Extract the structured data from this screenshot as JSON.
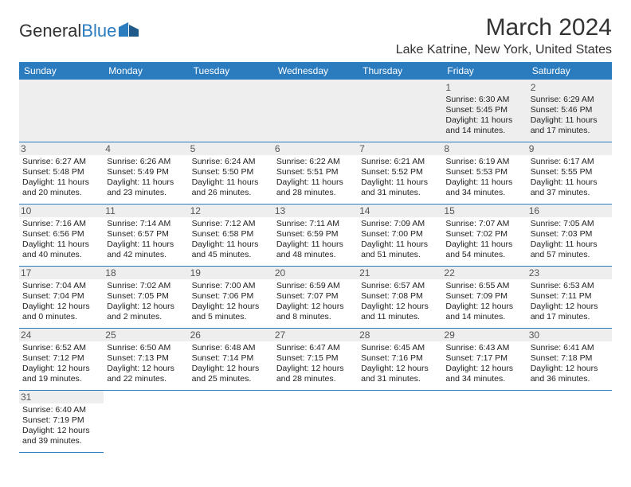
{
  "logo": {
    "text1": "General",
    "text2": "Blue"
  },
  "title": "March 2024",
  "location": "Lake Katrine, New York, United States",
  "colors": {
    "header_bg": "#2b7bbf",
    "header_text": "#ffffff",
    "border": "#2b7bbf",
    "daynum_bg": "#eeeeee",
    "text": "#222222"
  },
  "dayNames": [
    "Sunday",
    "Monday",
    "Tuesday",
    "Wednesday",
    "Thursday",
    "Friday",
    "Saturday"
  ],
  "weeks": [
    [
      null,
      null,
      null,
      null,
      null,
      {
        "n": "1",
        "sr": "Sunrise: 6:30 AM",
        "ss": "Sunset: 5:45 PM",
        "d1": "Daylight: 11 hours",
        "d2": "and 14 minutes."
      },
      {
        "n": "2",
        "sr": "Sunrise: 6:29 AM",
        "ss": "Sunset: 5:46 PM",
        "d1": "Daylight: 11 hours",
        "d2": "and 17 minutes."
      }
    ],
    [
      {
        "n": "3",
        "sr": "Sunrise: 6:27 AM",
        "ss": "Sunset: 5:48 PM",
        "d1": "Daylight: 11 hours",
        "d2": "and 20 minutes."
      },
      {
        "n": "4",
        "sr": "Sunrise: 6:26 AM",
        "ss": "Sunset: 5:49 PM",
        "d1": "Daylight: 11 hours",
        "d2": "and 23 minutes."
      },
      {
        "n": "5",
        "sr": "Sunrise: 6:24 AM",
        "ss": "Sunset: 5:50 PM",
        "d1": "Daylight: 11 hours",
        "d2": "and 26 minutes."
      },
      {
        "n": "6",
        "sr": "Sunrise: 6:22 AM",
        "ss": "Sunset: 5:51 PM",
        "d1": "Daylight: 11 hours",
        "d2": "and 28 minutes."
      },
      {
        "n": "7",
        "sr": "Sunrise: 6:21 AM",
        "ss": "Sunset: 5:52 PM",
        "d1": "Daylight: 11 hours",
        "d2": "and 31 minutes."
      },
      {
        "n": "8",
        "sr": "Sunrise: 6:19 AM",
        "ss": "Sunset: 5:53 PM",
        "d1": "Daylight: 11 hours",
        "d2": "and 34 minutes."
      },
      {
        "n": "9",
        "sr": "Sunrise: 6:17 AM",
        "ss": "Sunset: 5:55 PM",
        "d1": "Daylight: 11 hours",
        "d2": "and 37 minutes."
      }
    ],
    [
      {
        "n": "10",
        "sr": "Sunrise: 7:16 AM",
        "ss": "Sunset: 6:56 PM",
        "d1": "Daylight: 11 hours",
        "d2": "and 40 minutes."
      },
      {
        "n": "11",
        "sr": "Sunrise: 7:14 AM",
        "ss": "Sunset: 6:57 PM",
        "d1": "Daylight: 11 hours",
        "d2": "and 42 minutes."
      },
      {
        "n": "12",
        "sr": "Sunrise: 7:12 AM",
        "ss": "Sunset: 6:58 PM",
        "d1": "Daylight: 11 hours",
        "d2": "and 45 minutes."
      },
      {
        "n": "13",
        "sr": "Sunrise: 7:11 AM",
        "ss": "Sunset: 6:59 PM",
        "d1": "Daylight: 11 hours",
        "d2": "and 48 minutes."
      },
      {
        "n": "14",
        "sr": "Sunrise: 7:09 AM",
        "ss": "Sunset: 7:00 PM",
        "d1": "Daylight: 11 hours",
        "d2": "and 51 minutes."
      },
      {
        "n": "15",
        "sr": "Sunrise: 7:07 AM",
        "ss": "Sunset: 7:02 PM",
        "d1": "Daylight: 11 hours",
        "d2": "and 54 minutes."
      },
      {
        "n": "16",
        "sr": "Sunrise: 7:05 AM",
        "ss": "Sunset: 7:03 PM",
        "d1": "Daylight: 11 hours",
        "d2": "and 57 minutes."
      }
    ],
    [
      {
        "n": "17",
        "sr": "Sunrise: 7:04 AM",
        "ss": "Sunset: 7:04 PM",
        "d1": "Daylight: 12 hours",
        "d2": "and 0 minutes."
      },
      {
        "n": "18",
        "sr": "Sunrise: 7:02 AM",
        "ss": "Sunset: 7:05 PM",
        "d1": "Daylight: 12 hours",
        "d2": "and 2 minutes."
      },
      {
        "n": "19",
        "sr": "Sunrise: 7:00 AM",
        "ss": "Sunset: 7:06 PM",
        "d1": "Daylight: 12 hours",
        "d2": "and 5 minutes."
      },
      {
        "n": "20",
        "sr": "Sunrise: 6:59 AM",
        "ss": "Sunset: 7:07 PM",
        "d1": "Daylight: 12 hours",
        "d2": "and 8 minutes."
      },
      {
        "n": "21",
        "sr": "Sunrise: 6:57 AM",
        "ss": "Sunset: 7:08 PM",
        "d1": "Daylight: 12 hours",
        "d2": "and 11 minutes."
      },
      {
        "n": "22",
        "sr": "Sunrise: 6:55 AM",
        "ss": "Sunset: 7:09 PM",
        "d1": "Daylight: 12 hours",
        "d2": "and 14 minutes."
      },
      {
        "n": "23",
        "sr": "Sunrise: 6:53 AM",
        "ss": "Sunset: 7:11 PM",
        "d1": "Daylight: 12 hours",
        "d2": "and 17 minutes."
      }
    ],
    [
      {
        "n": "24",
        "sr": "Sunrise: 6:52 AM",
        "ss": "Sunset: 7:12 PM",
        "d1": "Daylight: 12 hours",
        "d2": "and 19 minutes."
      },
      {
        "n": "25",
        "sr": "Sunrise: 6:50 AM",
        "ss": "Sunset: 7:13 PM",
        "d1": "Daylight: 12 hours",
        "d2": "and 22 minutes."
      },
      {
        "n": "26",
        "sr": "Sunrise: 6:48 AM",
        "ss": "Sunset: 7:14 PM",
        "d1": "Daylight: 12 hours",
        "d2": "and 25 minutes."
      },
      {
        "n": "27",
        "sr": "Sunrise: 6:47 AM",
        "ss": "Sunset: 7:15 PM",
        "d1": "Daylight: 12 hours",
        "d2": "and 28 minutes."
      },
      {
        "n": "28",
        "sr": "Sunrise: 6:45 AM",
        "ss": "Sunset: 7:16 PM",
        "d1": "Daylight: 12 hours",
        "d2": "and 31 minutes."
      },
      {
        "n": "29",
        "sr": "Sunrise: 6:43 AM",
        "ss": "Sunset: 7:17 PM",
        "d1": "Daylight: 12 hours",
        "d2": "and 34 minutes."
      },
      {
        "n": "30",
        "sr": "Sunrise: 6:41 AM",
        "ss": "Sunset: 7:18 PM",
        "d1": "Daylight: 12 hours",
        "d2": "and 36 minutes."
      }
    ],
    [
      {
        "n": "31",
        "sr": "Sunrise: 6:40 AM",
        "ss": "Sunset: 7:19 PM",
        "d1": "Daylight: 12 hours",
        "d2": "and 39 minutes."
      },
      null,
      null,
      null,
      null,
      null,
      null
    ]
  ]
}
